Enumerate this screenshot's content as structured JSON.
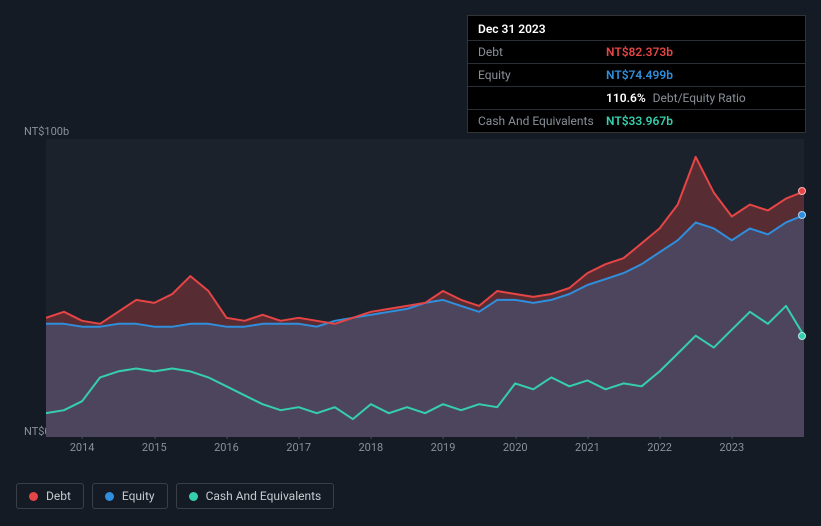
{
  "tooltip": {
    "date": "Dec 31 2023",
    "rows": [
      {
        "label": "Debt",
        "value": "NT$82.373b",
        "color": "#e64545"
      },
      {
        "label": "Equity",
        "value": "NT$74.499b",
        "color": "#2f8fdd"
      },
      {
        "label": "",
        "value": "110.6%",
        "extra": "Debt/Equity Ratio",
        "color": "#ffffff"
      },
      {
        "label": "Cash And Equivalents",
        "value": "NT$33.967b",
        "color": "#35cfae"
      }
    ]
  },
  "chart": {
    "type": "area-line",
    "background_color": "#1b222c",
    "page_background": "#151b24",
    "y_axis": {
      "min": 0,
      "max": 100,
      "labels": [
        {
          "v": 100,
          "text": "NT$100b"
        },
        {
          "v": 0,
          "text": "NT$0"
        }
      ],
      "label_color": "#8a9099",
      "label_fontsize": 11
    },
    "x_axis": {
      "min": 2013.5,
      "max": 2024.0,
      "ticks": [
        2014,
        2015,
        2016,
        2017,
        2018,
        2019,
        2020,
        2021,
        2022,
        2023
      ],
      "label_color": "#8a9099",
      "label_fontsize": 11
    },
    "series": [
      {
        "name": "Debt",
        "color": "#e64545",
        "fill_opacity": 0.3,
        "line_width": 2,
        "data": [
          [
            2013.5,
            40
          ],
          [
            2013.75,
            42
          ],
          [
            2014.0,
            39
          ],
          [
            2014.25,
            38
          ],
          [
            2014.5,
            42
          ],
          [
            2014.75,
            46
          ],
          [
            2015.0,
            45
          ],
          [
            2015.25,
            48
          ],
          [
            2015.5,
            54
          ],
          [
            2015.75,
            49
          ],
          [
            2016.0,
            40
          ],
          [
            2016.25,
            39
          ],
          [
            2016.5,
            41
          ],
          [
            2016.75,
            39
          ],
          [
            2017.0,
            40
          ],
          [
            2017.25,
            39
          ],
          [
            2017.5,
            38
          ],
          [
            2017.75,
            40
          ],
          [
            2018.0,
            42
          ],
          [
            2018.25,
            43
          ],
          [
            2018.5,
            44
          ],
          [
            2018.75,
            45
          ],
          [
            2019.0,
            49
          ],
          [
            2019.25,
            46
          ],
          [
            2019.5,
            44
          ],
          [
            2019.75,
            49
          ],
          [
            2020.0,
            48
          ],
          [
            2020.25,
            47
          ],
          [
            2020.5,
            48
          ],
          [
            2020.75,
            50
          ],
          [
            2021.0,
            55
          ],
          [
            2021.25,
            58
          ],
          [
            2021.5,
            60
          ],
          [
            2021.75,
            65
          ],
          [
            2022.0,
            70
          ],
          [
            2022.25,
            78
          ],
          [
            2022.5,
            94
          ],
          [
            2022.75,
            82
          ],
          [
            2023.0,
            74
          ],
          [
            2023.25,
            78
          ],
          [
            2023.5,
            76
          ],
          [
            2023.75,
            80
          ],
          [
            2024.0,
            82.4
          ]
        ]
      },
      {
        "name": "Equity",
        "color": "#2f8fdd",
        "fill_opacity": 0.25,
        "line_width": 2,
        "data": [
          [
            2013.5,
            38
          ],
          [
            2013.75,
            38
          ],
          [
            2014.0,
            37
          ],
          [
            2014.25,
            37
          ],
          [
            2014.5,
            38
          ],
          [
            2014.75,
            38
          ],
          [
            2015.0,
            37
          ],
          [
            2015.25,
            37
          ],
          [
            2015.5,
            38
          ],
          [
            2015.75,
            38
          ],
          [
            2016.0,
            37
          ],
          [
            2016.25,
            37
          ],
          [
            2016.5,
            38
          ],
          [
            2016.75,
            38
          ],
          [
            2017.0,
            38
          ],
          [
            2017.25,
            37
          ],
          [
            2017.5,
            39
          ],
          [
            2017.75,
            40
          ],
          [
            2018.0,
            41
          ],
          [
            2018.25,
            42
          ],
          [
            2018.5,
            43
          ],
          [
            2018.75,
            45
          ],
          [
            2019.0,
            46
          ],
          [
            2019.25,
            44
          ],
          [
            2019.5,
            42
          ],
          [
            2019.75,
            46
          ],
          [
            2020.0,
            46
          ],
          [
            2020.25,
            45
          ],
          [
            2020.5,
            46
          ],
          [
            2020.75,
            48
          ],
          [
            2021.0,
            51
          ],
          [
            2021.25,
            53
          ],
          [
            2021.5,
            55
          ],
          [
            2021.75,
            58
          ],
          [
            2022.0,
            62
          ],
          [
            2022.25,
            66
          ],
          [
            2022.5,
            72
          ],
          [
            2022.75,
            70
          ],
          [
            2023.0,
            66
          ],
          [
            2023.25,
            70
          ],
          [
            2023.5,
            68
          ],
          [
            2023.75,
            72
          ],
          [
            2024.0,
            74.5
          ]
        ]
      },
      {
        "name": "Cash And Equivalents",
        "color": "#35cfae",
        "fill_opacity": 0.0,
        "line_width": 2,
        "data": [
          [
            2013.5,
            8
          ],
          [
            2013.75,
            9
          ],
          [
            2014.0,
            12
          ],
          [
            2014.25,
            20
          ],
          [
            2014.5,
            22
          ],
          [
            2014.75,
            23
          ],
          [
            2015.0,
            22
          ],
          [
            2015.25,
            23
          ],
          [
            2015.5,
            22
          ],
          [
            2015.75,
            20
          ],
          [
            2016.0,
            17
          ],
          [
            2016.25,
            14
          ],
          [
            2016.5,
            11
          ],
          [
            2016.75,
            9
          ],
          [
            2017.0,
            10
          ],
          [
            2017.25,
            8
          ],
          [
            2017.5,
            10
          ],
          [
            2017.75,
            6
          ],
          [
            2018.0,
            11
          ],
          [
            2018.25,
            8
          ],
          [
            2018.5,
            10
          ],
          [
            2018.75,
            8
          ],
          [
            2019.0,
            11
          ],
          [
            2019.25,
            9
          ],
          [
            2019.5,
            11
          ],
          [
            2019.75,
            10
          ],
          [
            2020.0,
            18
          ],
          [
            2020.25,
            16
          ],
          [
            2020.5,
            20
          ],
          [
            2020.75,
            17
          ],
          [
            2021.0,
            19
          ],
          [
            2021.25,
            16
          ],
          [
            2021.5,
            18
          ],
          [
            2021.75,
            17
          ],
          [
            2022.0,
            22
          ],
          [
            2022.25,
            28
          ],
          [
            2022.5,
            34
          ],
          [
            2022.75,
            30
          ],
          [
            2023.0,
            36
          ],
          [
            2023.25,
            42
          ],
          [
            2023.5,
            38
          ],
          [
            2023.75,
            44
          ],
          [
            2024.0,
            34.0
          ]
        ]
      }
    ],
    "end_markers": [
      {
        "series": "Debt",
        "color": "#e64545",
        "y": 82.4
      },
      {
        "series": "Equity",
        "color": "#2f8fdd",
        "y": 74.5
      },
      {
        "series": "Cash And Equivalents",
        "color": "#35cfae",
        "y": 34.0
      }
    ]
  },
  "legend": {
    "items": [
      {
        "label": "Debt",
        "color": "#e64545"
      },
      {
        "label": "Equity",
        "color": "#2f8fdd"
      },
      {
        "label": "Cash And Equivalents",
        "color": "#35cfae"
      }
    ],
    "border_color": "#3a3f47",
    "text_color": "#c6cad0",
    "fontsize": 12
  }
}
